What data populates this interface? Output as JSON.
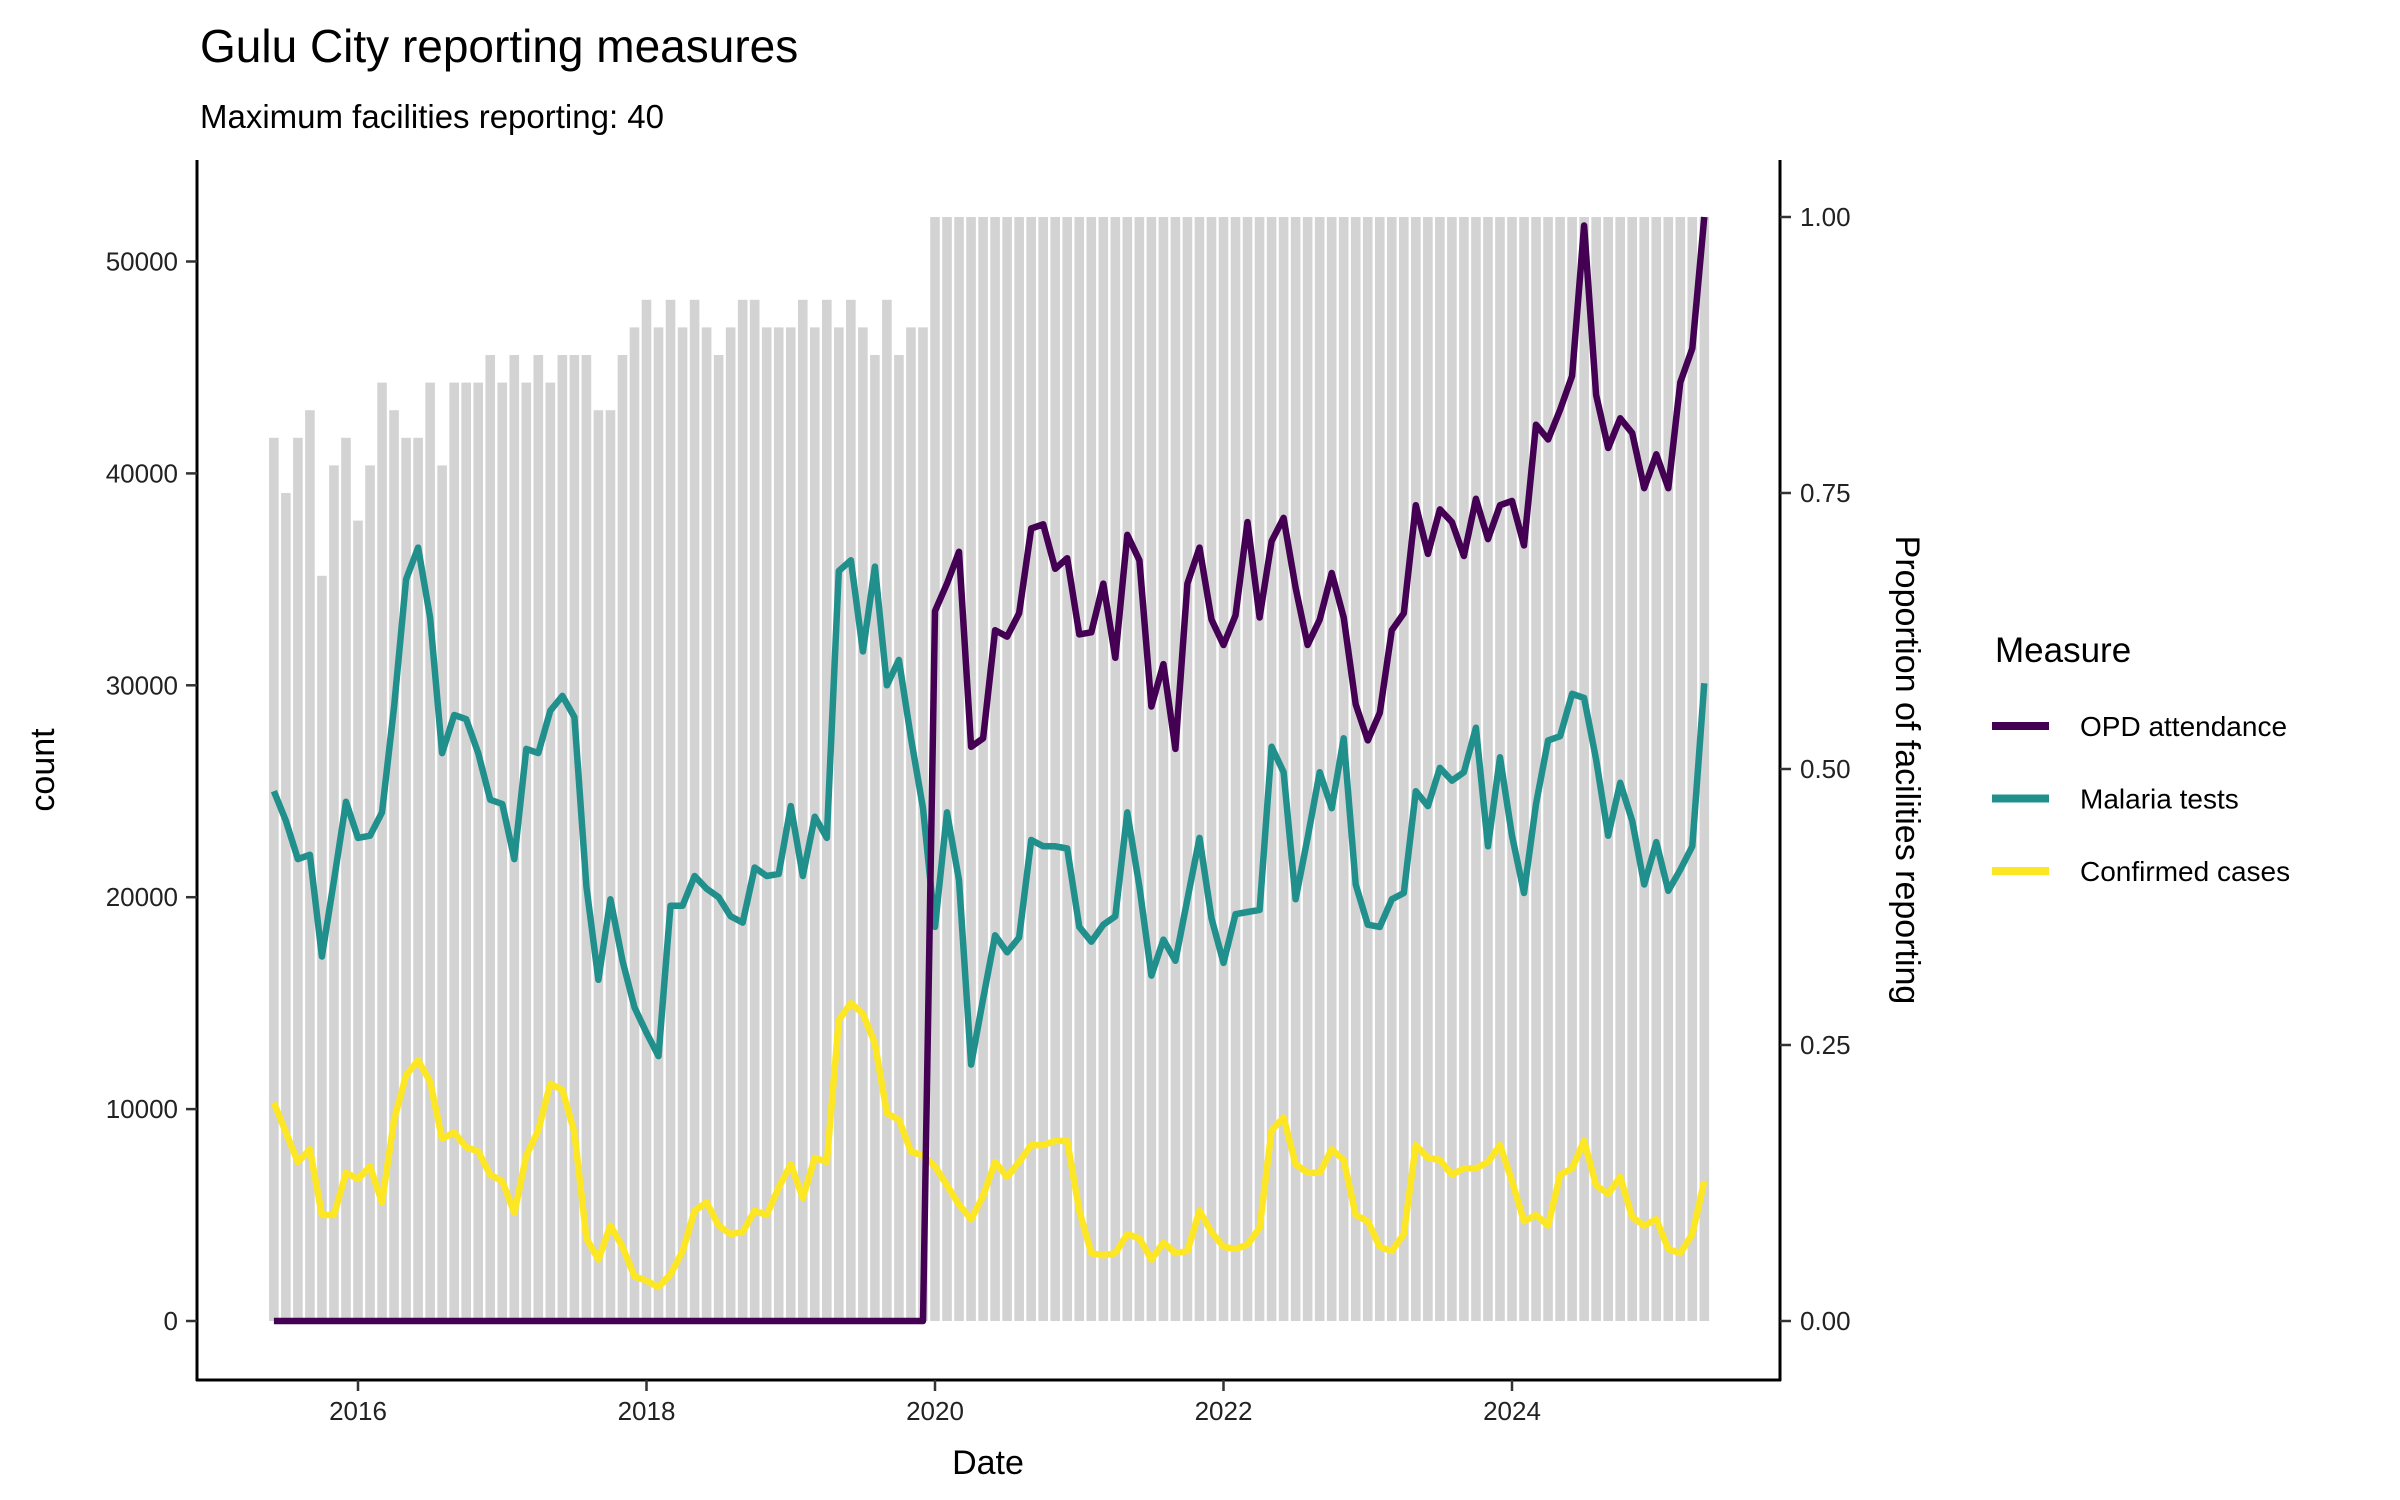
{
  "chart_data": {
    "type": "line",
    "title": "Gulu City reporting measures",
    "subtitle": "Maximum facilities reporting: 40",
    "xlabel": "Date",
    "ylabel": "count",
    "y2label": "Proportion of facilities reporting",
    "ylim": [
      0,
      52100
    ],
    "y2lim": [
      0,
      1
    ],
    "yticks": [
      0,
      10000,
      20000,
      30000,
      40000,
      50000
    ],
    "y2ticks": [
      "0.00",
      "0.25",
      "0.50",
      "0.75",
      "1.00"
    ],
    "xticks": [
      "2016",
      "2018",
      "2020",
      "2022",
      "2024"
    ],
    "grid": false,
    "legend": {
      "title": "Measure",
      "placement": "right"
    },
    "max_facilities": 40,
    "dates": [
      "2015-06",
      "2015-07",
      "2015-08",
      "2015-09",
      "2015-10",
      "2015-11",
      "2015-12",
      "2016-01",
      "2016-02",
      "2016-03",
      "2016-04",
      "2016-05",
      "2016-06",
      "2016-07",
      "2016-08",
      "2016-09",
      "2016-10",
      "2016-11",
      "2016-12",
      "2017-01",
      "2017-02",
      "2017-03",
      "2017-04",
      "2017-05",
      "2017-06",
      "2017-07",
      "2017-08",
      "2017-09",
      "2017-10",
      "2017-11",
      "2017-12",
      "2018-01",
      "2018-02",
      "2018-03",
      "2018-04",
      "2018-05",
      "2018-06",
      "2018-07",
      "2018-08",
      "2018-09",
      "2018-10",
      "2018-11",
      "2018-12",
      "2019-01",
      "2019-02",
      "2019-03",
      "2019-04",
      "2019-05",
      "2019-06",
      "2019-07",
      "2019-08",
      "2019-09",
      "2019-10",
      "2019-11",
      "2019-12",
      "2020-01",
      "2020-02",
      "2020-03",
      "2020-04",
      "2020-05",
      "2020-06",
      "2020-07",
      "2020-08",
      "2020-09",
      "2020-10",
      "2020-11",
      "2020-12",
      "2021-01",
      "2021-02",
      "2021-03",
      "2021-04",
      "2021-05",
      "2021-06",
      "2021-07",
      "2021-08",
      "2021-09",
      "2021-10",
      "2021-11",
      "2021-12",
      "2022-01",
      "2022-02",
      "2022-03",
      "2022-04",
      "2022-05",
      "2022-06",
      "2022-07",
      "2022-08",
      "2022-09",
      "2022-10",
      "2022-11",
      "2022-12",
      "2023-01",
      "2023-02",
      "2023-03",
      "2023-04",
      "2023-05",
      "2023-06",
      "2023-07",
      "2023-08",
      "2023-09",
      "2023-10",
      "2023-11",
      "2023-12",
      "2024-01",
      "2024-02",
      "2024-03",
      "2024-04",
      "2024-05",
      "2024-06",
      "2024-07",
      "2024-08",
      "2024-09",
      "2024-10",
      "2024-11",
      "2024-12",
      "2025-01",
      "2025-02",
      "2025-03",
      "2025-04",
      "2025-05"
    ],
    "facilities_reporting": [
      32,
      30,
      32,
      33,
      27,
      31,
      32,
      29,
      31,
      34,
      33,
      32,
      32,
      34,
      31,
      34,
      34,
      34,
      35,
      34,
      35,
      34,
      35,
      34,
      35,
      35,
      35,
      33,
      33,
      35,
      36,
      37,
      36,
      37,
      36,
      37,
      36,
      35,
      36,
      37,
      37,
      36,
      36,
      36,
      37,
      36,
      37,
      36,
      37,
      36,
      35,
      37,
      35,
      36,
      36,
      40,
      40,
      40,
      40,
      40,
      40,
      40,
      40,
      40,
      40,
      40,
      40,
      40,
      40,
      40,
      40,
      40,
      40,
      40,
      40,
      40,
      40,
      40,
      40,
      40,
      40,
      40,
      40,
      40,
      40,
      40,
      40,
      40,
      40,
      40,
      40,
      40,
      40,
      40,
      40,
      40,
      40,
      40,
      40,
      40,
      40,
      40,
      40,
      40,
      40,
      40,
      40,
      40,
      40,
      40,
      40,
      40,
      40,
      40,
      40,
      40,
      40,
      40,
      40,
      40
    ],
    "series": [
      {
        "name": "OPD attendance",
        "color": "#440154",
        "values": [
          0,
          0,
          0,
          0,
          0,
          0,
          0,
          0,
          0,
          0,
          0,
          0,
          0,
          0,
          0,
          0,
          0,
          0,
          0,
          0,
          0,
          0,
          0,
          0,
          0,
          0,
          0,
          0,
          0,
          0,
          0,
          0,
          0,
          0,
          0,
          0,
          0,
          0,
          0,
          0,
          0,
          0,
          0,
          0,
          0,
          0,
          0,
          0,
          0,
          0,
          0,
          0,
          0,
          0,
          0,
          33500,
          34800,
          36300,
          27100,
          27500,
          32600,
          32300,
          33400,
          37400,
          37600,
          35500,
          36000,
          32400,
          32500,
          34800,
          31300,
          37100,
          35900,
          29000,
          31000,
          27000,
          34800,
          36500,
          33100,
          31900,
          33300,
          37700,
          33200,
          36800,
          37900,
          34600,
          31900,
          33100,
          35300,
          33200,
          29100,
          27400,
          28700,
          32600,
          33400,
          38500,
          36200,
          38300,
          37700,
          36100,
          38800,
          36900,
          38500,
          38700,
          36600,
          42300,
          41600,
          43000,
          44600,
          51700,
          43700,
          41200,
          42600,
          41900,
          39300,
          40900,
          39300,
          44300,
          45900,
          52100
        ]
      },
      {
        "name": "Malaria tests",
        "color": "#21908C",
        "values": [
          25000,
          23600,
          21800,
          22000,
          17200,
          20800,
          24500,
          22800,
          22900,
          24000,
          29000,
          35000,
          36500,
          33200,
          26800,
          28600,
          28400,
          26800,
          24600,
          24400,
          21800,
          27000,
          26800,
          28800,
          29500,
          28500,
          20500,
          16100,
          19900,
          17000,
          14800,
          13600,
          12500,
          19600,
          19600,
          21000,
          20400,
          20000,
          19100,
          18800,
          21400,
          21000,
          21100,
          24300,
          21000,
          23800,
          22800,
          35400,
          35900,
          31600,
          35600,
          30000,
          31200,
          27500,
          24200,
          18600,
          24000,
          20800,
          12100,
          15200,
          18200,
          17400,
          18100,
          22700,
          22400,
          22400,
          22300,
          18600,
          17900,
          18700,
          19100,
          24000,
          20500,
          16300,
          18000,
          17000,
          19900,
          22800,
          19000,
          16900,
          19200,
          19300,
          19400,
          27100,
          25900,
          19900,
          22800,
          25900,
          24200,
          27500,
          20600,
          18700,
          18600,
          19900,
          20200,
          25000,
          24300,
          26100,
          25500,
          25900,
          28000,
          22400,
          26600,
          22900,
          20200,
          24400,
          27400,
          27600,
          29600,
          29400,
          26500,
          22900,
          25400,
          23600,
          20600,
          22600,
          20300,
          21300,
          22400,
          30100
        ]
      },
      {
        "name": "Confirmed cases",
        "color": "#FDE725",
        "values": [
          10300,
          8900,
          7500,
          8100,
          5000,
          5000,
          7000,
          6700,
          7300,
          5600,
          9500,
          11600,
          12300,
          11300,
          8600,
          8900,
          8200,
          8000,
          6900,
          6600,
          5100,
          7800,
          9000,
          11200,
          10900,
          8900,
          3900,
          2900,
          4500,
          3500,
          2100,
          1900,
          1600,
          2200,
          3300,
          5200,
          5600,
          4500,
          4100,
          4200,
          5200,
          5000,
          6300,
          7400,
          5800,
          7700,
          7500,
          14200,
          15000,
          14500,
          13100,
          9800,
          9500,
          8000,
          7800,
          7300,
          6400,
          5500,
          4800,
          5900,
          7500,
          6800,
          7500,
          8300,
          8300,
          8500,
          8500,
          5200,
          3200,
          3100,
          3200,
          4100,
          3900,
          2900,
          3700,
          3200,
          3300,
          5200,
          4200,
          3500,
          3400,
          3600,
          4400,
          9000,
          9600,
          7400,
          7000,
          7000,
          8100,
          7600,
          5000,
          4700,
          3500,
          3300,
          4100,
          8300,
          7700,
          7600,
          6900,
          7200,
          7200,
          7500,
          8300,
          6600,
          4700,
          5000,
          4500,
          6900,
          7200,
          8500,
          6400,
          6000,
          6800,
          4900,
          4500,
          4800,
          3400,
          3200,
          4100,
          6600
        ]
      }
    ],
    "bar_color": "#D3D3D3"
  }
}
